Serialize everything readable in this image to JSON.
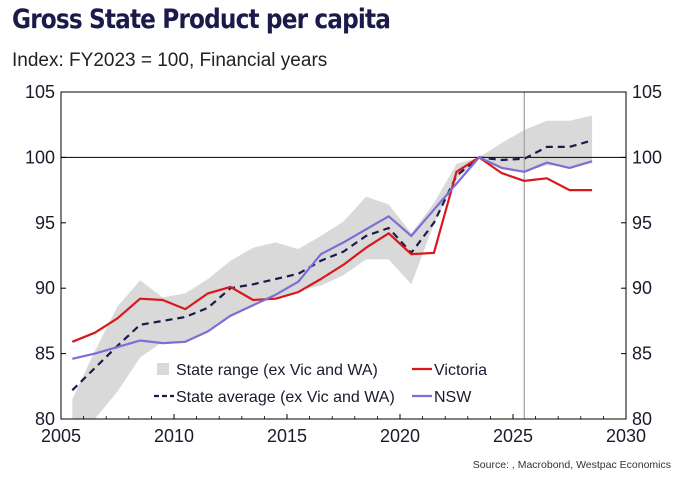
{
  "title": "Gross State Product per capita",
  "subtitle": "Index: FY2023 = 100, Financial years",
  "source": "Source: , Macrobond, Westpac Economics",
  "chart_data": {
    "type": "line",
    "title": "Gross State Product per capita",
    "subtitle": "Index: FY2023 = 100, Financial years",
    "xlabel": "",
    "ylabel": "",
    "xlim": [
      2005,
      2030
    ],
    "ylim": [
      80,
      105
    ],
    "x_ticks": [
      2005,
      2010,
      2015,
      2020,
      2025,
      2030
    ],
    "y_ticks": [
      80,
      85,
      90,
      95,
      100,
      105
    ],
    "y_axis_right_mirror": true,
    "reference_line_y": 100,
    "forecast_marker_x": 2025.5,
    "grid": false,
    "legend_position": "bottom-right",
    "colors": {
      "range": "#d9d9d9",
      "state_average": "#1b1a4a",
      "victoria": "#d7191c",
      "nsw": "#7b6ed6",
      "reference": "#000000",
      "forecast_marker": "#a0a0a0"
    },
    "band": {
      "name": "State range (ex Vic and WA)",
      "x": [
        2005.5,
        2006.5,
        2007.5,
        2008.5,
        2009.5,
        2010.5,
        2011.5,
        2012.5,
        2013.5,
        2014.5,
        2015.5,
        2016.5,
        2017.5,
        2018.5,
        2019.5,
        2020.5,
        2021.5,
        2022.5,
        2023.5,
        2024.5,
        2025.5,
        2026.5,
        2027.5,
        2028.5
      ],
      "low": [
        80.0,
        80.0,
        82.1,
        84.7,
        85.9,
        85.8,
        86.8,
        87.9,
        88.7,
        89.3,
        89.8,
        90.2,
        91.0,
        92.2,
        92.2,
        90.3,
        94.9,
        98.3,
        100.0,
        99.1,
        98.9,
        99.4,
        99.3,
        99.6
      ],
      "high": [
        81.5,
        85.2,
        88.6,
        90.6,
        89.3,
        89.6,
        90.7,
        92.1,
        93.1,
        93.5,
        93.0,
        94.0,
        95.1,
        97.0,
        96.4,
        94.2,
        96.5,
        99.5,
        100.0,
        101.1,
        102.1,
        102.8,
        102.8,
        103.2
      ]
    },
    "series": [
      {
        "name": "State average (ex Vic and WA)",
        "style": "dashed",
        "x": [
          2005.5,
          2006.5,
          2007.5,
          2008.5,
          2009.5,
          2010.5,
          2011.5,
          2012.5,
          2013.5,
          2014.5,
          2015.5,
          2016.5,
          2017.5,
          2018.5,
          2019.5,
          2020.5,
          2021.5,
          2022.5,
          2023.5,
          2024.5,
          2025.5,
          2026.5,
          2027.5,
          2028.5
        ],
        "values": [
          82.2,
          83.9,
          85.6,
          87.2,
          87.5,
          87.8,
          88.5,
          90.0,
          90.3,
          90.7,
          91.1,
          92.1,
          92.8,
          94.0,
          94.6,
          92.7,
          95.0,
          98.6,
          100.0,
          99.8,
          99.9,
          100.8,
          100.8,
          101.3
        ]
      },
      {
        "name": "Victoria",
        "style": "solid",
        "x": [
          2005.5,
          2006.5,
          2007.5,
          2008.5,
          2009.5,
          2010.5,
          2011.5,
          2012.5,
          2013.5,
          2014.5,
          2015.5,
          2016.5,
          2017.5,
          2018.5,
          2019.5,
          2020.5,
          2021.5,
          2022.5,
          2023.5,
          2024.5,
          2025.5,
          2026.5,
          2027.5,
          2028.5
        ],
        "values": [
          85.9,
          86.6,
          87.7,
          89.2,
          89.1,
          88.4,
          89.6,
          90.1,
          89.1,
          89.2,
          89.7,
          90.7,
          91.8,
          93.1,
          94.2,
          92.6,
          92.7,
          98.9,
          100.0,
          98.8,
          98.2,
          98.4,
          97.5,
          97.5
        ]
      },
      {
        "name": "NSW",
        "style": "solid",
        "x": [
          2005.5,
          2006.5,
          2007.5,
          2008.5,
          2009.5,
          2010.5,
          2011.5,
          2012.5,
          2013.5,
          2014.5,
          2015.5,
          2016.5,
          2017.5,
          2018.5,
          2019.5,
          2020.5,
          2021.5,
          2022.5,
          2023.5,
          2024.5,
          2025.5,
          2026.5,
          2027.5,
          2028.5
        ],
        "values": [
          84.6,
          85.0,
          85.5,
          86.0,
          85.8,
          85.9,
          86.7,
          87.9,
          88.7,
          89.5,
          90.5,
          92.6,
          93.5,
          94.5,
          95.5,
          94.0,
          96.0,
          98.0,
          100.0,
          99.2,
          98.9,
          99.6,
          99.2,
          99.7
        ]
      }
    ],
    "legend": [
      {
        "label": "State range (ex Vic and WA)",
        "kind": "band"
      },
      {
        "label": "Victoria",
        "kind": "line"
      },
      {
        "label": "State average (ex Vic and WA)",
        "kind": "dashed"
      },
      {
        "label": "NSW",
        "kind": "line"
      }
    ]
  }
}
